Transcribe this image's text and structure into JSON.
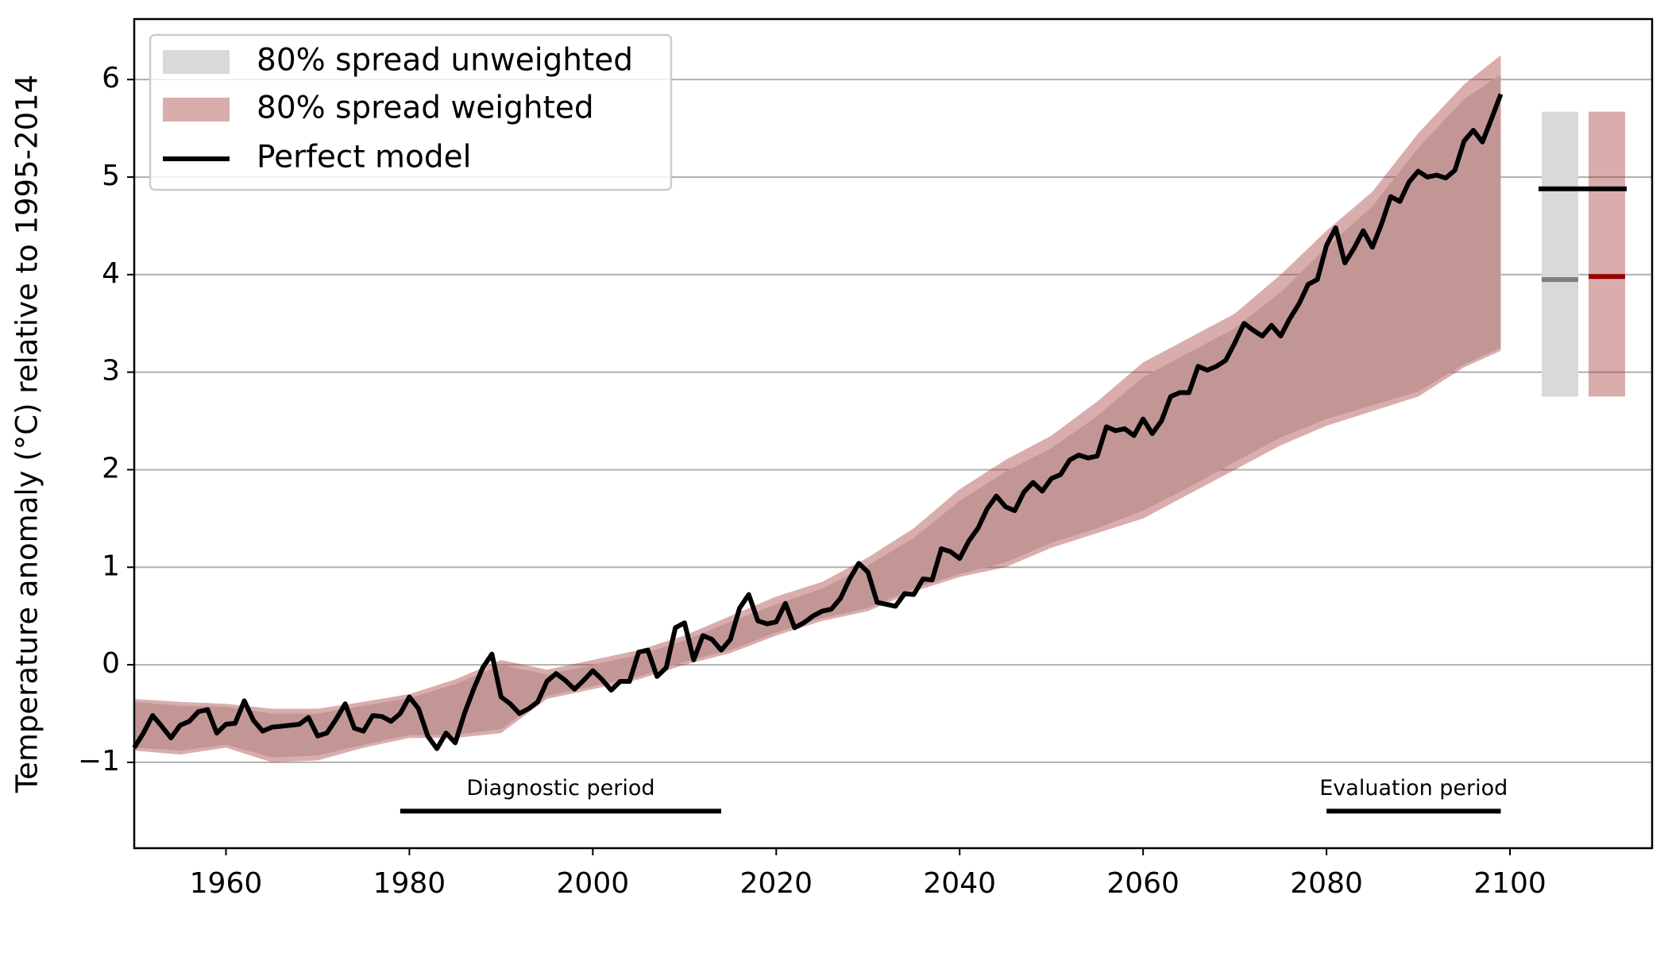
{
  "chart_data": {
    "type": "line",
    "ylabel": "Temperature anomaly (°C) relative to 1995-2014",
    "xlim": [
      1950,
      2115.5
    ],
    "ylim": [
      -1.88,
      6.62
    ],
    "xticks": [
      1960,
      1980,
      2000,
      2020,
      2040,
      2060,
      2080,
      2100
    ],
    "yticks": [
      {
        "value": -1,
        "label": "−1"
      },
      0,
      1,
      2,
      3,
      4,
      5,
      6
    ],
    "grid": true,
    "legend": "upper left",
    "bands": {
      "x": [
        1950,
        1955,
        1960,
        1965,
        1970,
        1975,
        1980,
        1985,
        1990,
        1995,
        2000,
        2005,
        2010,
        2015,
        2020,
        2025,
        2030,
        2035,
        2040,
        2045,
        2050,
        2055,
        2060,
        2065,
        2070,
        2075,
        2080,
        2085,
        2090,
        2095,
        2099
      ],
      "series": [
        {
          "name": "80% spread unweighted",
          "color": "#d9d9d9",
          "opacity": 1,
          "lower": [
            -0.85,
            -0.88,
            -0.82,
            -0.95,
            -0.93,
            -0.82,
            -0.72,
            -0.72,
            -0.66,
            -0.32,
            -0.22,
            -0.12,
            0.03,
            0.15,
            0.33,
            0.48,
            0.58,
            0.78,
            0.93,
            1.05,
            1.25,
            1.4,
            1.58,
            1.82,
            2.08,
            2.33,
            2.52,
            2.66,
            2.8,
            3.08,
            3.25
          ],
          "upper": [
            -0.38,
            -0.42,
            -0.43,
            -0.5,
            -0.5,
            -0.42,
            -0.34,
            -0.2,
            0.0,
            -0.1,
            0.0,
            0.1,
            0.25,
            0.44,
            0.62,
            0.78,
            1.02,
            1.3,
            1.68,
            1.98,
            2.22,
            2.55,
            2.95,
            3.2,
            3.45,
            3.82,
            4.28,
            4.7,
            5.3,
            5.8,
            6.05
          ]
        },
        {
          "name": "80% spread weighted",
          "color": "#a33333",
          "opacity": 0.4,
          "lower": [
            -0.88,
            -0.92,
            -0.85,
            -1.0,
            -0.98,
            -0.85,
            -0.75,
            -0.75,
            -0.7,
            -0.35,
            -0.25,
            -0.15,
            0.0,
            0.12,
            0.3,
            0.45,
            0.55,
            0.75,
            0.9,
            1.0,
            1.2,
            1.35,
            1.5,
            1.75,
            2.0,
            2.25,
            2.45,
            2.6,
            2.75,
            3.05,
            3.22
          ],
          "upper": [
            -0.35,
            -0.38,
            -0.4,
            -0.45,
            -0.45,
            -0.38,
            -0.3,
            -0.15,
            0.05,
            -0.05,
            0.05,
            0.15,
            0.3,
            0.5,
            0.7,
            0.85,
            1.1,
            1.4,
            1.8,
            2.1,
            2.35,
            2.7,
            3.1,
            3.35,
            3.6,
            4.0,
            4.45,
            4.85,
            5.45,
            5.95,
            6.25
          ]
        }
      ]
    },
    "x": [
      1950,
      1951,
      1952,
      1953,
      1954,
      1955,
      1956,
      1957,
      1958,
      1959,
      1960,
      1961,
      1962,
      1963,
      1964,
      1965,
      1966,
      1967,
      1968,
      1969,
      1970,
      1971,
      1972,
      1973,
      1974,
      1975,
      1976,
      1977,
      1978,
      1979,
      1980,
      1981,
      1982,
      1983,
      1984,
      1985,
      1986,
      1987,
      1988,
      1989,
      1990,
      1991,
      1992,
      1993,
      1994,
      1995,
      1996,
      1997,
      1998,
      1999,
      2000,
      2001,
      2002,
      2003,
      2004,
      2005,
      2006,
      2007,
      2008,
      2009,
      2010,
      2011,
      2012,
      2013,
      2014,
      2015,
      2016,
      2017,
      2018,
      2019,
      2020,
      2021,
      2022,
      2023,
      2024,
      2025,
      2026,
      2027,
      2028,
      2029,
      2030,
      2031,
      2032,
      2033,
      2034,
      2035,
      2036,
      2037,
      2038,
      2039,
      2040,
      2041,
      2042,
      2043,
      2044,
      2045,
      2046,
      2047,
      2048,
      2049,
      2050,
      2051,
      2052,
      2053,
      2054,
      2055,
      2056,
      2057,
      2058,
      2059,
      2060,
      2061,
      2062,
      2063,
      2064,
      2065,
      2066,
      2067,
      2068,
      2069,
      2070,
      2071,
      2072,
      2073,
      2074,
      2075,
      2076,
      2077,
      2078,
      2079,
      2080,
      2081,
      2082,
      2083,
      2084,
      2085,
      2086,
      2087,
      2088,
      2089,
      2090,
      2091,
      2092,
      2093,
      2094,
      2095,
      2096,
      2097,
      2098,
      2099
    ],
    "series": [
      {
        "name": "Perfect model",
        "color": "#000000",
        "values": [
          -0.85,
          -0.7,
          -0.52,
          -0.63,
          -0.75,
          -0.62,
          -0.58,
          -0.48,
          -0.46,
          -0.7,
          -0.61,
          -0.6,
          -0.37,
          -0.57,
          -0.68,
          -0.64,
          -0.63,
          -0.62,
          -0.61,
          -0.54,
          -0.73,
          -0.7,
          -0.56,
          -0.4,
          -0.65,
          -0.68,
          -0.52,
          -0.53,
          -0.58,
          -0.5,
          -0.33,
          -0.45,
          -0.73,
          -0.86,
          -0.7,
          -0.8,
          -0.5,
          -0.25,
          -0.03,
          0.11,
          -0.33,
          -0.4,
          -0.5,
          -0.45,
          -0.38,
          -0.17,
          -0.09,
          -0.16,
          -0.25,
          -0.16,
          -0.06,
          -0.15,
          -0.26,
          -0.17,
          -0.17,
          0.13,
          0.15,
          -0.12,
          -0.03,
          0.38,
          0.43,
          0.05,
          0.3,
          0.26,
          0.15,
          0.26,
          0.58,
          0.72,
          0.45,
          0.42,
          0.44,
          0.63,
          0.38,
          0.43,
          0.5,
          0.55,
          0.57,
          0.68,
          0.88,
          1.04,
          0.95,
          0.64,
          0.62,
          0.6,
          0.73,
          0.72,
          0.88,
          0.87,
          1.19,
          1.16,
          1.09,
          1.27,
          1.4,
          1.6,
          1.73,
          1.62,
          1.58,
          1.77,
          1.87,
          1.78,
          1.91,
          1.95,
          2.1,
          2.15,
          2.12,
          2.14,
          2.44,
          2.4,
          2.42,
          2.35,
          2.52,
          2.37,
          2.5,
          2.75,
          2.79,
          2.79,
          3.06,
          3.02,
          3.06,
          3.12,
          3.3,
          3.5,
          3.43,
          3.37,
          3.48,
          3.37,
          3.55,
          3.7,
          3.9,
          3.95,
          4.3,
          4.48,
          4.12,
          4.27,
          4.45,
          4.28,
          4.52,
          4.8,
          4.75,
          4.95,
          5.06,
          5.0,
          5.02,
          4.99,
          5.07,
          5.37,
          5.48,
          5.36,
          5.6,
          5.85
        ]
      }
    ],
    "summary": {
      "unweighted": {
        "low": 2.75,
        "high": 5.67,
        "median": 3.95,
        "median_color": "#808080"
      },
      "weighted": {
        "low": 2.75,
        "high": 5.67,
        "median": 3.98,
        "median_color": "#990000"
      },
      "perfect": 4.88
    },
    "periods": [
      {
        "label": "Diagnostic period",
        "start": 1979,
        "end": 2014,
        "y": -1.5
      },
      {
        "label": "Evaluation period",
        "start": 2080,
        "end": 2099,
        "y": -1.5
      }
    ]
  }
}
